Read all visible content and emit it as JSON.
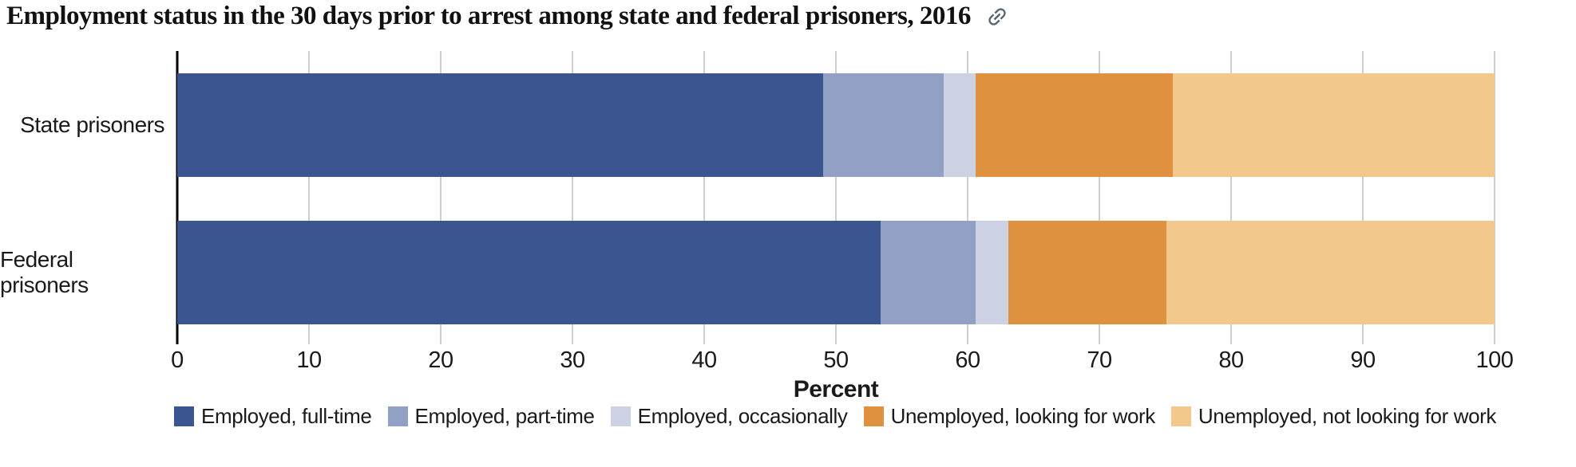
{
  "title": "Employment status in the 30 days prior to arrest among state and federal prisoners, 2016",
  "chart_data": {
    "type": "bar",
    "orientation": "horizontal",
    "stacked": true,
    "title": "Employment status in the 30 days prior to arrest among state and federal prisoners, 2016",
    "categories": [
      "State prisoners",
      "Federal prisoners"
    ],
    "series": [
      {
        "name": "Employed, full-time",
        "color": "#3a5590",
        "values": [
          49.0,
          53.4
        ]
      },
      {
        "name": "Employed, part-time",
        "color": "#93a0c6",
        "values": [
          9.2,
          7.2
        ]
      },
      {
        "name": "Employed, occasionally",
        "color": "#cdd1e4",
        "values": [
          2.4,
          2.5
        ]
      },
      {
        "name": "Unemployed, looking for work",
        "color": "#e0913f",
        "values": [
          15.0,
          12.0
        ]
      },
      {
        "name": "Unemployed, not looking for work",
        "color": "#f2c88c",
        "values": [
          24.4,
          24.9
        ]
      }
    ],
    "xlabel": "Percent",
    "x_ticks": [
      0,
      10,
      20,
      30,
      40,
      50,
      60,
      70,
      80,
      90,
      100
    ],
    "xlim": [
      0,
      100
    ],
    "grid": true,
    "legend_position": "bottom"
  },
  "icons": {
    "link": "link-icon"
  },
  "colors": {
    "background": "#ffffff",
    "axis": "#000000",
    "gridline": "#cfcfcf",
    "text": "#1a1a1a",
    "link_icon": "#5b6471"
  }
}
